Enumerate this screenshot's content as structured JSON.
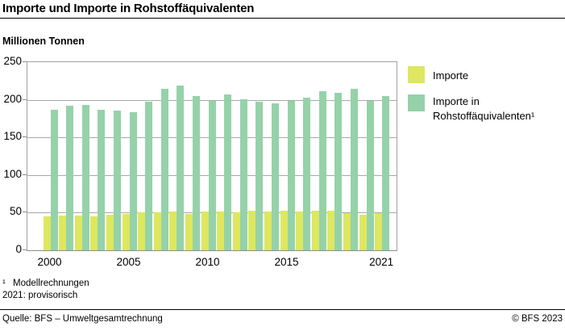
{
  "header": {
    "title": "Importe und Importe in Rohstoffäquivalenten",
    "unit_label": "Millionen Tonnen"
  },
  "chart_data": {
    "type": "bar",
    "title": "Importe und Importe in Rohstoffäquivalenten",
    "ylabel": "Millionen Tonnen",
    "categories": [
      2000,
      2001,
      2002,
      2003,
      2004,
      2005,
      2006,
      2007,
      2008,
      2009,
      2010,
      2011,
      2012,
      2013,
      2014,
      2015,
      2016,
      2017,
      2018,
      2019,
      2020,
      2021
    ],
    "series": [
      {
        "name": "Importe",
        "color": "#dde75f",
        "values": [
          45,
          46,
          46,
          45,
          47,
          48,
          50,
          50,
          51,
          48,
          51,
          51,
          50,
          53,
          52,
          53,
          52,
          53,
          53,
          49,
          47,
          49
        ]
      },
      {
        "name": "Importe in Rohstoffäquivalenten¹",
        "color": "#95d2a9",
        "values": [
          187,
          192,
          193,
          187,
          186,
          184,
          197,
          215,
          219,
          205,
          198,
          207,
          201,
          197,
          195,
          198,
          203,
          211,
          209,
          215,
          198,
          205
        ]
      }
    ],
    "ylim": [
      0,
      250
    ],
    "yticks": [
      0,
      50,
      100,
      150,
      200,
      250
    ],
    "xtick_years": [
      2000,
      2005,
      2010,
      2015,
      2021
    ],
    "grid": true,
    "legend_position": "right"
  },
  "footnotes": {
    "line1_marker": "¹",
    "line1_text": "Modellrechnungen",
    "line2": "2021: provisorisch"
  },
  "footer": {
    "source": "Quelle: BFS – Umweltgesamtrechnung",
    "copyright": "© BFS 2023"
  }
}
